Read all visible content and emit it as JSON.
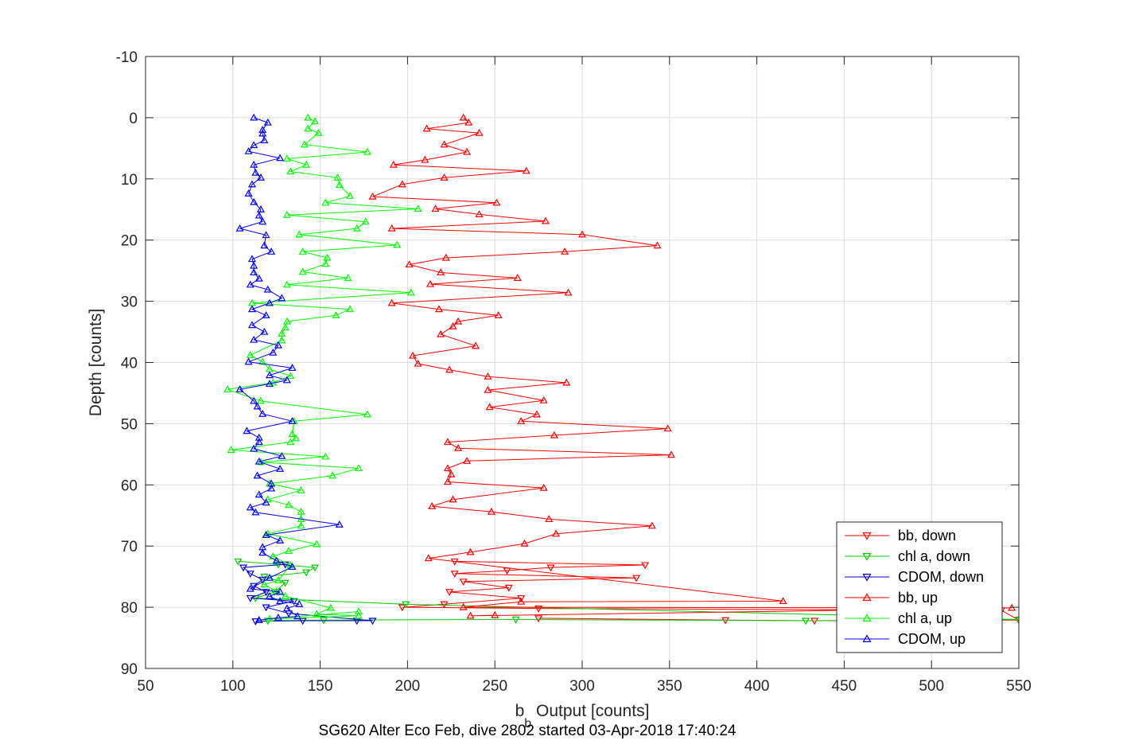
{
  "chart_data": {
    "type": "line",
    "title": "SG620 Alter Eco Feb, dive 2802 started 03-Apr-2018 17:40:24",
    "xlabel_main": "b",
    "xlabel_sub": "b",
    "xlabel_rest": " Output [counts]",
    "ylabel": "Depth [counts]",
    "xlim": [
      50,
      550
    ],
    "ylim": [
      -10,
      90
    ],
    "y_reversed": true,
    "grid": true,
    "legend_position": "bottom-right",
    "xticks": [
      50,
      100,
      150,
      200,
      250,
      300,
      350,
      400,
      450,
      500,
      550
    ],
    "yticks": [
      -10,
      0,
      10,
      20,
      30,
      40,
      50,
      60,
      70,
      80,
      90
    ],
    "series": [
      {
        "name": "bb, down",
        "color": "#ff0000",
        "marker": "triangle-down",
        "points": [
          [
            275,
            81.8
          ],
          [
            382,
            82.1
          ],
          [
            433,
            82.2
          ],
          [
            550,
            82.1
          ],
          [
            540,
            80.5
          ],
          [
            275,
            80.2
          ],
          [
            197,
            80.0
          ],
          [
            221,
            79.5
          ],
          [
            265,
            78.5
          ],
          [
            224,
            77.5
          ],
          [
            258,
            76.8
          ],
          [
            232,
            75.8
          ],
          [
            331,
            75.2
          ],
          [
            227,
            74.5
          ],
          [
            257,
            74.0
          ],
          [
            282,
            73.5
          ],
          [
            336,
            73.1
          ],
          [
            227,
            72.5
          ]
        ]
      },
      {
        "name": "chl a, down",
        "color": "#00cc00",
        "marker": "triangle-down",
        "points": [
          [
            120,
            82.2
          ],
          [
            152,
            82.1
          ],
          [
            262,
            82.0
          ],
          [
            428,
            82.2
          ],
          [
            550,
            82.0
          ],
          [
            199,
            79.5
          ],
          [
            113,
            78.5
          ],
          [
            124,
            77.5
          ],
          [
            130,
            76.0
          ],
          [
            118,
            75.0
          ],
          [
            142,
            74.3
          ],
          [
            147,
            73.5
          ],
          [
            126,
            73.0
          ],
          [
            103,
            72.5
          ]
        ]
      },
      {
        "name": "CDOM, down",
        "color": "#0000cc",
        "marker": "triangle-down",
        "points": [
          [
            113,
            82.3
          ],
          [
            140,
            82.2
          ],
          [
            171,
            82.2
          ],
          [
            180,
            82.2
          ],
          [
            132,
            81.0
          ],
          [
            119,
            80.0
          ],
          [
            135,
            79.0
          ],
          [
            110,
            78.5
          ],
          [
            119,
            77.5
          ],
          [
            112,
            76.5
          ],
          [
            117,
            75.5
          ],
          [
            110,
            74.5
          ],
          [
            106,
            73.5
          ],
          [
            130,
            73.0
          ]
        ]
      },
      {
        "name": "bb, up",
        "color": "#ff0000",
        "marker": "triangle-up",
        "points": [
          [
            232,
            0
          ],
          [
            235,
            0.8
          ],
          [
            211,
            1.8
          ],
          [
            241,
            2.5
          ],
          [
            221,
            4.4
          ],
          [
            234,
            5.6
          ],
          [
            210,
            6.9
          ],
          [
            192,
            7.7
          ],
          [
            268,
            8.7
          ],
          [
            221,
            9.8
          ],
          [
            197,
            10.9
          ],
          [
            180,
            12.9
          ],
          [
            251,
            13.9
          ],
          [
            216,
            14.9
          ],
          [
            241,
            15.8
          ],
          [
            279,
            16.9
          ],
          [
            191,
            18.1
          ],
          [
            300,
            19.1
          ],
          [
            343,
            20.9
          ],
          [
            290,
            21.9
          ],
          [
            222,
            22.9
          ],
          [
            201,
            24.0
          ],
          [
            219,
            25.3
          ],
          [
            263,
            26.2
          ],
          [
            213,
            27.2
          ],
          [
            292,
            28.6
          ],
          [
            191,
            30.3
          ],
          [
            218,
            31.3
          ],
          [
            252,
            32.3
          ],
          [
            229,
            33.3
          ],
          [
            226,
            34.1
          ],
          [
            219,
            35.4
          ],
          [
            239,
            37.3
          ],
          [
            203,
            38.9
          ],
          [
            206,
            40.2
          ],
          [
            224,
            41.2
          ],
          [
            246,
            42.3
          ],
          [
            291,
            43.3
          ],
          [
            246,
            44.5
          ],
          [
            278,
            46.2
          ],
          [
            247,
            47.3
          ],
          [
            274,
            48.5
          ],
          [
            265,
            49.6
          ],
          [
            349,
            50.8
          ],
          [
            284,
            51.9
          ],
          [
            223,
            53.0
          ],
          [
            229,
            54.0
          ],
          [
            351,
            55.1
          ],
          [
            234,
            56.1
          ],
          [
            223,
            57.3
          ],
          [
            225,
            58.3
          ],
          [
            223,
            59.5
          ],
          [
            278,
            60.5
          ],
          [
            226,
            62.4
          ],
          [
            214,
            63.5
          ],
          [
            248,
            64.4
          ],
          [
            281,
            65.6
          ],
          [
            340,
            66.7
          ],
          [
            285,
            68.0
          ],
          [
            267,
            69.6
          ],
          [
            236,
            71.0
          ],
          [
            212,
            72.0
          ],
          [
            415,
            79.0
          ],
          [
            265,
            79.1
          ],
          [
            232,
            80.0
          ],
          [
            546,
            80.1
          ],
          [
            236,
            81.4
          ],
          [
            250,
            81.3
          ]
        ]
      },
      {
        "name": "chl a, up",
        "color": "#00ff00",
        "marker": "triangle-up",
        "points": [
          [
            143,
            0
          ],
          [
            147,
            0.6
          ],
          [
            143,
            1.8
          ],
          [
            149,
            2.5
          ],
          [
            141,
            4.4
          ],
          [
            177,
            5.6
          ],
          [
            131,
            6.7
          ],
          [
            142,
            7.7
          ],
          [
            133,
            8.8
          ],
          [
            160,
            9.8
          ],
          [
            161,
            11.0
          ],
          [
            167,
            12.8
          ],
          [
            153,
            13.9
          ],
          [
            206,
            14.9
          ],
          [
            131,
            15.9
          ],
          [
            176,
            17.0
          ],
          [
            171,
            18.1
          ],
          [
            138,
            19.1
          ],
          [
            194,
            20.8
          ],
          [
            140,
            21.9
          ],
          [
            154,
            22.9
          ],
          [
            153,
            23.9
          ],
          [
            140,
            25.2
          ],
          [
            166,
            26.2
          ],
          [
            131,
            27.3
          ],
          [
            202,
            28.6
          ],
          [
            111,
            30.3
          ],
          [
            167,
            31.3
          ],
          [
            159,
            32.3
          ],
          [
            131,
            33.3
          ],
          [
            130,
            34.3
          ],
          [
            128,
            35.3
          ],
          [
            128,
            36.4
          ],
          [
            110,
            38.8
          ],
          [
            117,
            39.9
          ],
          [
            121,
            41.1
          ],
          [
            133,
            42.2
          ],
          [
            123,
            43.3
          ],
          [
            97,
            44.4
          ],
          [
            116,
            46.3
          ],
          [
            177,
            48.5
          ],
          [
            135,
            49.6
          ],
          [
            134,
            51.7
          ],
          [
            136,
            52.4
          ],
          [
            133,
            53.0
          ],
          [
            99,
            54.3
          ],
          [
            153,
            55.4
          ],
          [
            116,
            56.3
          ],
          [
            172,
            57.3
          ],
          [
            157,
            58.5
          ],
          [
            121,
            59.8
          ],
          [
            139,
            60.9
          ],
          [
            120,
            62.4
          ],
          [
            132,
            63.3
          ],
          [
            139,
            64.4
          ],
          [
            139,
            65.6
          ],
          [
            139,
            66.7
          ],
          [
            120,
            68.0
          ],
          [
            148,
            69.7
          ],
          [
            132,
            70.8
          ],
          [
            123,
            71.7
          ],
          [
            133,
            73.1
          ],
          [
            126,
            75.6
          ],
          [
            118,
            76.3
          ],
          [
            125,
            77.4
          ],
          [
            130,
            78.2
          ],
          [
            156,
            80.1
          ],
          [
            148,
            81.1
          ],
          [
            172,
            81.4
          ],
          [
            121,
            81.9
          ],
          [
            172,
            80.7
          ]
        ]
      },
      {
        "name": "CDOM, up",
        "color": "#0000ff",
        "marker": "triangle-up",
        "points": [
          [
            112,
            0
          ],
          [
            120,
            0.8
          ],
          [
            117,
            2.0
          ],
          [
            117,
            2.6
          ],
          [
            118,
            3.7
          ],
          [
            112,
            4.5
          ],
          [
            109,
            5.5
          ],
          [
            127,
            6.6
          ],
          [
            112,
            7.7
          ],
          [
            113,
            9.0
          ],
          [
            116,
            9.8
          ],
          [
            111,
            10.9
          ],
          [
            109,
            12.4
          ],
          [
            112,
            13.8
          ],
          [
            116,
            15.0
          ],
          [
            115,
            16.0
          ],
          [
            117,
            17.0
          ],
          [
            104,
            18.1
          ],
          [
            119,
            19.2
          ],
          [
            118,
            20.9
          ],
          [
            122,
            21.9
          ],
          [
            111,
            23.1
          ],
          [
            112,
            24.2
          ],
          [
            112,
            25.3
          ],
          [
            115,
            26.3
          ],
          [
            110,
            27.3
          ],
          [
            120,
            28.1
          ],
          [
            128,
            29.5
          ],
          [
            121,
            30.3
          ],
          [
            111,
            31.3
          ],
          [
            119,
            32.3
          ],
          [
            111,
            33.9
          ],
          [
            118,
            35.0
          ],
          [
            112,
            36.3
          ],
          [
            126,
            37.2
          ],
          [
            123,
            38.4
          ],
          [
            109,
            39.9
          ],
          [
            134,
            40.9
          ],
          [
            121,
            42.1
          ],
          [
            131,
            42.9
          ],
          [
            121,
            43.5
          ],
          [
            104,
            44.4
          ],
          [
            112,
            46.3
          ],
          [
            114,
            47.2
          ],
          [
            117,
            48.4
          ],
          [
            134,
            49.6
          ],
          [
            108,
            51.2
          ],
          [
            115,
            52.3
          ],
          [
            115,
            53.0
          ],
          [
            112,
            54.1
          ],
          [
            128,
            55.3
          ],
          [
            115,
            56.2
          ],
          [
            127,
            57.4
          ],
          [
            114,
            58.5
          ],
          [
            122,
            59.8
          ],
          [
            122,
            60.6
          ],
          [
            115,
            61.6
          ],
          [
            119,
            62.9
          ],
          [
            110,
            63.7
          ],
          [
            113,
            64.5
          ],
          [
            161,
            66.5
          ],
          [
            119,
            68.2
          ],
          [
            127,
            69.1
          ],
          [
            117,
            70.2
          ],
          [
            117,
            71.1
          ],
          [
            125,
            72.4
          ],
          [
            134,
            73.4
          ],
          [
            121,
            75.2
          ],
          [
            110,
            77.0
          ],
          [
            127,
            77.5
          ],
          [
            121,
            78.2
          ],
          [
            127,
            79.0
          ],
          [
            138,
            79.5
          ],
          [
            131,
            80.2
          ],
          [
            137,
            81.5
          ],
          [
            126,
            81.7
          ],
          [
            115,
            82.1
          ]
        ]
      }
    ]
  }
}
